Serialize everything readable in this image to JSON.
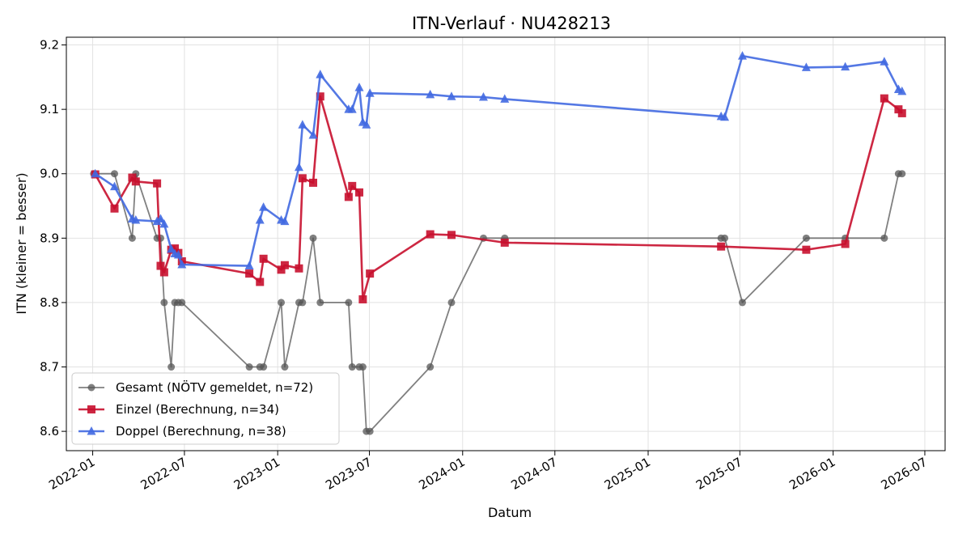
{
  "chart_data": {
    "type": "line",
    "title": "ITN-Verlauf · NU428213",
    "xlabel": "Datum",
    "ylabel": "ITN  (kleiner = besser)",
    "x_ticks": [
      "2022-01",
      "2022-07",
      "2023-01",
      "2023-07",
      "2024-01",
      "2024-07",
      "2025-01",
      "2025-07",
      "2026-01",
      "2026-07"
    ],
    "y_ticks": [
      "8.6",
      "8.7",
      "8.8",
      "8.9",
      "9.0",
      "9.1",
      "9.2"
    ],
    "xlim": [
      "2021-11-10",
      "2026-08-10"
    ],
    "ylim": [
      8.57,
      9.212
    ],
    "grid": true,
    "legend_position": "lower-left",
    "colors": {
      "gesamt": "#555555",
      "einzel": "#c8102e",
      "doppel": "#4169e1"
    },
    "series": [
      {
        "name": "Gesamt (NÖTV gemeldet, n=72)",
        "key": "gesamt",
        "marker": "circle",
        "points": [
          [
            "2022-01-03",
            9.0
          ],
          [
            "2022-02-13",
            9.0
          ],
          [
            "2022-03-20",
            8.9
          ],
          [
            "2022-03-27",
            9.0
          ],
          [
            "2022-05-08",
            8.9
          ],
          [
            "2022-05-15",
            8.9
          ],
          [
            "2022-05-22",
            8.8
          ],
          [
            "2022-06-05",
            8.7
          ],
          [
            "2022-06-12",
            8.8
          ],
          [
            "2022-06-19",
            8.8
          ],
          [
            "2022-06-26",
            8.8
          ],
          [
            "2022-11-06",
            8.7
          ],
          [
            "2022-11-27",
            8.7
          ],
          [
            "2022-12-04",
            8.7
          ],
          [
            "2023-01-08",
            8.8
          ],
          [
            "2023-01-15",
            8.7
          ],
          [
            "2023-02-12",
            8.8
          ],
          [
            "2023-02-19",
            8.8
          ],
          [
            "2023-03-12",
            8.9
          ],
          [
            "2023-03-26",
            8.8
          ],
          [
            "2023-05-21",
            8.8
          ],
          [
            "2023-05-28",
            8.7
          ],
          [
            "2023-06-11",
            8.7
          ],
          [
            "2023-06-18",
            8.7
          ],
          [
            "2023-06-25",
            8.6
          ],
          [
            "2023-07-02",
            8.6
          ],
          [
            "2023-10-29",
            8.7
          ],
          [
            "2023-12-10",
            8.8
          ],
          [
            "2024-02-11",
            8.9
          ],
          [
            "2024-03-24",
            8.9
          ],
          [
            "2025-05-25",
            8.9
          ],
          [
            "2025-06-01",
            8.9
          ],
          [
            "2025-07-06",
            8.8
          ],
          [
            "2025-11-09",
            8.9
          ],
          [
            "2026-01-25",
            8.9
          ],
          [
            "2026-04-12",
            8.9
          ],
          [
            "2026-05-10",
            9.0
          ],
          [
            "2026-05-17",
            9.0
          ]
        ]
      },
      {
        "name": "Einzel (Berechnung, n=34)",
        "key": "einzel",
        "marker": "square",
        "points": [
          [
            "2022-01-06",
            8.999
          ],
          [
            "2022-02-13",
            8.946
          ],
          [
            "2022-03-20",
            8.994
          ],
          [
            "2022-03-27",
            8.988
          ],
          [
            "2022-05-08",
            8.985
          ],
          [
            "2022-05-15",
            8.857
          ],
          [
            "2022-05-22",
            8.847
          ],
          [
            "2022-06-05",
            8.882
          ],
          [
            "2022-06-12",
            8.884
          ],
          [
            "2022-06-19",
            8.877
          ],
          [
            "2022-06-26",
            8.864
          ],
          [
            "2022-11-06",
            8.845
          ],
          [
            "2022-11-27",
            8.832
          ],
          [
            "2022-12-04",
            8.868
          ],
          [
            "2023-01-08",
            8.851
          ],
          [
            "2023-01-15",
            8.858
          ],
          [
            "2023-02-12",
            8.853
          ],
          [
            "2023-02-19",
            8.993
          ],
          [
            "2023-03-12",
            8.986
          ],
          [
            "2023-03-26",
            9.12
          ],
          [
            "2023-05-21",
            8.964
          ],
          [
            "2023-05-28",
            8.981
          ],
          [
            "2023-06-11",
            8.971
          ],
          [
            "2023-06-18",
            8.805
          ],
          [
            "2023-07-02",
            8.845
          ],
          [
            "2023-10-29",
            8.906
          ],
          [
            "2023-12-10",
            8.905
          ],
          [
            "2024-03-24",
            8.893
          ],
          [
            "2025-05-25",
            8.887
          ],
          [
            "2025-11-09",
            8.882
          ],
          [
            "2026-01-25",
            8.891
          ],
          [
            "2026-04-12",
            9.117
          ],
          [
            "2026-05-10",
            9.1
          ],
          [
            "2026-05-17",
            9.094
          ]
        ]
      },
      {
        "name": "Doppel (Berechnung, n=38)",
        "key": "doppel",
        "marker": "triangle",
        "points": [
          [
            "2022-01-06",
            9.0
          ],
          [
            "2022-02-13",
            8.98
          ],
          [
            "2022-03-20",
            8.93
          ],
          [
            "2022-03-27",
            8.928
          ],
          [
            "2022-05-08",
            8.926
          ],
          [
            "2022-05-15",
            8.93
          ],
          [
            "2022-05-22",
            8.922
          ],
          [
            "2022-06-05",
            8.883
          ],
          [
            "2022-06-12",
            8.876
          ],
          [
            "2022-06-19",
            8.874
          ],
          [
            "2022-06-26",
            8.859
          ],
          [
            "2022-11-06",
            8.857
          ],
          [
            "2022-11-27",
            8.928
          ],
          [
            "2022-12-04",
            8.948
          ],
          [
            "2023-01-08",
            8.928
          ],
          [
            "2023-01-15",
            8.926
          ],
          [
            "2023-02-12",
            9.01
          ],
          [
            "2023-02-19",
            9.076
          ],
          [
            "2023-03-12",
            9.06
          ],
          [
            "2023-03-26",
            9.154
          ],
          [
            "2023-05-21",
            9.1
          ],
          [
            "2023-05-28",
            9.1
          ],
          [
            "2023-06-11",
            9.134
          ],
          [
            "2023-06-18",
            9.08
          ],
          [
            "2023-06-25",
            9.076
          ],
          [
            "2023-07-02",
            9.125
          ],
          [
            "2023-10-29",
            9.123
          ],
          [
            "2023-12-10",
            9.12
          ],
          [
            "2024-02-11",
            9.119
          ],
          [
            "2024-03-24",
            9.116
          ],
          [
            "2025-05-25",
            9.089
          ],
          [
            "2025-06-01",
            9.088
          ],
          [
            "2025-07-06",
            9.183
          ],
          [
            "2025-11-09",
            9.165
          ],
          [
            "2026-01-25",
            9.166
          ],
          [
            "2026-04-12",
            9.174
          ],
          [
            "2026-05-10",
            9.131
          ],
          [
            "2026-05-17",
            9.128
          ]
        ]
      }
    ]
  }
}
